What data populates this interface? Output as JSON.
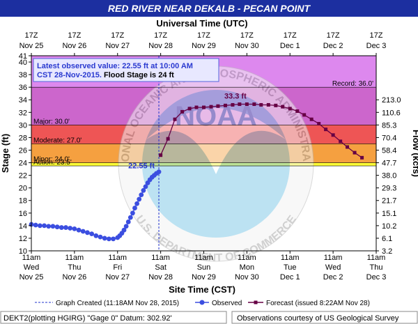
{
  "title": "RED RIVER NEAR DEKALB - PECAN POINT",
  "top_axis_title": "Universal Time (UTC)",
  "bottom_axis_title": "Site Time (CST)",
  "left_axis_title": "Stage (ft)",
  "right_axis_title": "Flow (kcfs)",
  "colors": {
    "title_bg": "#1c2fa0",
    "record_zone": "#dd88ee",
    "major_zone": "#cc66cc",
    "moderate_zone": "#ee5555",
    "minor_zone": "#f5a040",
    "action_zone": "#ffff33",
    "observed": "#3b4ee0",
    "forecast": "#660044",
    "created_line": "#2233cc"
  },
  "chart_data": {
    "type": "line",
    "xlim": [
      0,
      8
    ],
    "ylim": [
      10,
      41
    ],
    "y_ticks": [
      10,
      12,
      14,
      16,
      18,
      20,
      22,
      24,
      26,
      28,
      30,
      32,
      34,
      36,
      38,
      40,
      41
    ],
    "top_ticks": [
      {
        "time": "17Z",
        "date": "Nov 25"
      },
      {
        "time": "17Z",
        "date": "Nov 26"
      },
      {
        "time": "17Z",
        "date": "Nov 27"
      },
      {
        "time": "17Z",
        "date": "Nov 28"
      },
      {
        "time": "17Z",
        "date": "Nov 29"
      },
      {
        "time": "17Z",
        "date": "Nov 30"
      },
      {
        "time": "17Z",
        "date": "Dec 1"
      },
      {
        "time": "17Z",
        "date": "Dec 2"
      },
      {
        "time": "17Z",
        "date": "Dec 3"
      }
    ],
    "bottom_ticks": [
      {
        "time": "11am",
        "day": "Wed",
        "date": "Nov 25"
      },
      {
        "time": "11am",
        "day": "Thu",
        "date": "Nov 26"
      },
      {
        "time": "11am",
        "day": "Fri",
        "date": "Nov 27"
      },
      {
        "time": "11am",
        "day": "Sat",
        "date": "Nov 28"
      },
      {
        "time": "11am",
        "day": "Sun",
        "date": "Nov 29"
      },
      {
        "time": "11am",
        "day": "Mon",
        "date": "Nov 30"
      },
      {
        "time": "11am",
        "day": "Tue",
        "date": "Dec 1"
      },
      {
        "time": "11am",
        "day": "Wed",
        "date": "Dec 2"
      },
      {
        "time": "11am",
        "day": "Thu",
        "date": "Dec 3"
      }
    ],
    "flow_ticks": [
      {
        "stage": 10,
        "label": "3.2"
      },
      {
        "stage": 12,
        "label": "6.1"
      },
      {
        "stage": 14,
        "label": "10.2"
      },
      {
        "stage": 16,
        "label": "15.1"
      },
      {
        "stage": 18,
        "label": "21.7"
      },
      {
        "stage": 20,
        "label": "29.3"
      },
      {
        "stage": 22,
        "label": "38.0"
      },
      {
        "stage": 24,
        "label": "47.7"
      },
      {
        "stage": 26,
        "label": "58.4"
      },
      {
        "stage": 28,
        "label": "70.4"
      },
      {
        "stage": 30,
        "label": "85.3"
      },
      {
        "stage": 32,
        "label": "110.6"
      },
      {
        "stage": 34,
        "label": "213.0"
      }
    ],
    "flood_categories": [
      {
        "name": "action",
        "label": "Action: 23.5'",
        "stage": 23.5
      },
      {
        "name": "minor",
        "label": "Minor: 24.0'",
        "stage": 24.0
      },
      {
        "name": "moderate",
        "label": "Moderate: 27.0'",
        "stage": 27.0
      },
      {
        "name": "major",
        "label": "Major: 30.0'",
        "stage": 30.0
      },
      {
        "name": "record",
        "label": "Record: 36.0'",
        "stage": 36.0
      }
    ],
    "created_x": 2.958,
    "observed": {
      "name": "Observed",
      "x": [
        0,
        0.1,
        0.2,
        0.3,
        0.4,
        0.5,
        0.6,
        0.7,
        0.8,
        0.9,
        1.0,
        1.1,
        1.2,
        1.3,
        1.4,
        1.5,
        1.6,
        1.7,
        1.8,
        1.9,
        2.0,
        2.05,
        2.1,
        2.15,
        2.2,
        2.25,
        2.3,
        2.35,
        2.4,
        2.45,
        2.5,
        2.55,
        2.6,
        2.65,
        2.7,
        2.75,
        2.8,
        2.85,
        2.9,
        2.958
      ],
      "y": [
        14.2,
        14.1,
        14.0,
        14.0,
        13.9,
        13.9,
        13.8,
        13.7,
        13.7,
        13.6,
        13.5,
        13.3,
        13.1,
        12.9,
        12.7,
        12.4,
        12.2,
        12.0,
        11.9,
        11.9,
        12.1,
        12.4,
        12.8,
        13.3,
        13.9,
        14.6,
        15.3,
        16.0,
        16.8,
        17.5,
        18.2,
        18.9,
        19.6,
        20.2,
        20.8,
        21.3,
        21.7,
        22.0,
        22.3,
        22.55
      ]
    },
    "forecast": {
      "x": [
        3.0,
        3.17,
        3.33,
        3.5,
        3.67,
        3.83,
        4.0,
        4.17,
        4.33,
        4.5,
        4.67,
        4.83,
        5.0,
        5.17,
        5.33,
        5.5,
        5.67,
        5.83,
        6.0,
        6.17,
        6.33,
        6.5,
        6.67,
        6.83,
        7.0,
        7.17,
        7.33,
        7.5,
        7.67
      ],
      "y": [
        25.2,
        27.8,
        30.9,
        32.1,
        32.6,
        32.8,
        32.8,
        32.9,
        33.0,
        33.1,
        33.2,
        33.3,
        33.3,
        33.3,
        33.2,
        33.2,
        33.1,
        32.9,
        32.6,
        32.2,
        31.6,
        30.9,
        30.2,
        29.3,
        28.4,
        27.4,
        26.5,
        25.6,
        24.8
      ]
    },
    "annotations": {
      "crest": "33.3 ft",
      "last_obs": "22.55 ft"
    }
  },
  "info_box": {
    "line1": "Latest observed value: 22.55 ft at 10:00 AM",
    "line2a": "CST 28-Nov-2015.",
    "line2b": " Flood Stage is 24 ft"
  },
  "legend": {
    "created": "Graph Created (11:18AM Nov 28, 2015)",
    "observed": "Observed",
    "forecast": "Forecast (issued 8:22AM Nov 28)"
  },
  "footer": {
    "left": "DEKT2(plotting HGIRG) \"Gage 0\" Datum: 302.92'",
    "right": "Observations courtesy of US Geological Survey"
  },
  "watermark": {
    "text_top": "NATIONAL OCEANIC AND ATMOSPHERIC ADMINISTRATION",
    "text_bottom": "U.S. DEPARTMENT OF COMMERCE",
    "center": "NOAA"
  }
}
